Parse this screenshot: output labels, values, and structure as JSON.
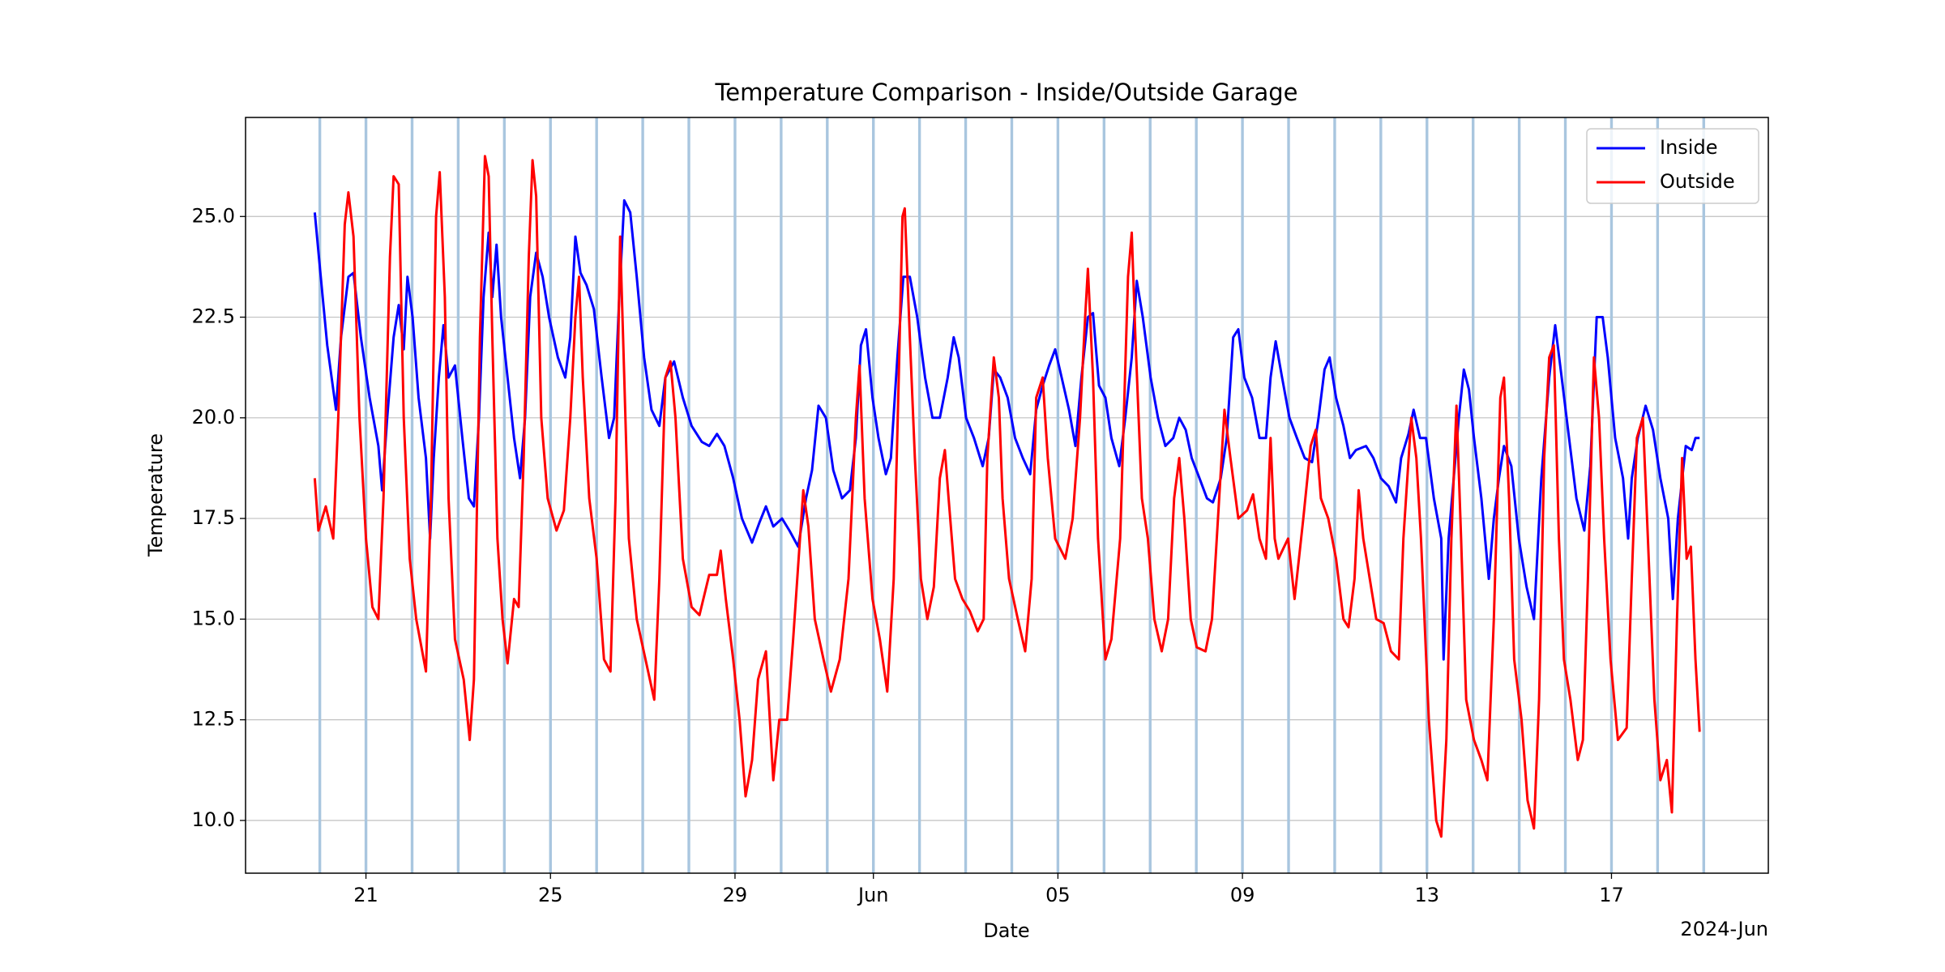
{
  "chart_data": {
    "type": "line",
    "title": "Temperature Comparison - Inside/Outside Garage",
    "xlabel": "Date",
    "ylabel": "Temperature",
    "x_offset_label": "2024-Jun",
    "xlim": [
      18.39,
      51.4
    ],
    "ylim": [
      8.69,
      27.46
    ],
    "xticks": [
      21,
      25,
      29,
      {
        "value": 32,
        "label": "Jun"
      },
      {
        "value": 36,
        "label": "05"
      },
      {
        "value": 40,
        "label": "09"
      },
      {
        "value": 44,
        "label": "13"
      },
      {
        "value": 48,
        "label": "17"
      }
    ],
    "yticks": [
      {
        "value": 10,
        "label": "10.0"
      },
      {
        "value": 12.5,
        "label": "12.5"
      },
      {
        "value": 15,
        "label": "15.0"
      },
      {
        "value": 17.5,
        "label": "17.5"
      },
      {
        "value": 20,
        "label": "20.0"
      },
      {
        "value": 22.5,
        "label": "22.5"
      },
      {
        "value": 25,
        "label": "25.0"
      }
    ],
    "grid": true,
    "legend": "upper right",
    "vlines": [
      20,
      21,
      22,
      23,
      24,
      25,
      26,
      27,
      28,
      29,
      30,
      31,
      32,
      33,
      34,
      35,
      36,
      37,
      38,
      39,
      40,
      41,
      42,
      43,
      44,
      45,
      46,
      47,
      48,
      49,
      50
    ],
    "vline_color": "#a9c6df",
    "series": [
      {
        "name": "Inside",
        "color": "#0000ff",
        "x": [
          19.89,
          20.02,
          20.16,
          20.35,
          20.46,
          20.62,
          20.73,
          20.89,
          21.08,
          21.27,
          21.35,
          21.46,
          21.6,
          21.71,
          21.82,
          21.9,
          22.01,
          22.14,
          22.3,
          22.39,
          22.47,
          22.58,
          22.68,
          22.79,
          22.93,
          23.09,
          23.23,
          23.34,
          23.45,
          23.55,
          23.66,
          23.74,
          23.83,
          23.93,
          24.07,
          24.21,
          24.34,
          24.45,
          24.56,
          24.69,
          24.83,
          24.97,
          25.16,
          25.32,
          25.43,
          25.54,
          25.65,
          25.78,
          25.94,
          26.11,
          26.27,
          26.38,
          26.49,
          26.6,
          26.73,
          26.87,
          27.03,
          27.19,
          27.36,
          27.49,
          27.68,
          27.87,
          28.06,
          28.28,
          28.44,
          28.61,
          28.77,
          28.96,
          29.15,
          29.37,
          29.53,
          29.67,
          29.83,
          30.02,
          30.18,
          30.37,
          30.54,
          30.67,
          30.81,
          30.97,
          31.13,
          31.32,
          31.49,
          31.62,
          31.73,
          31.84,
          31.98,
          32.11,
          32.27,
          32.38,
          32.52,
          32.65,
          32.79,
          32.95,
          33.12,
          33.28,
          33.44,
          33.61,
          33.74,
          33.85,
          34.01,
          34.18,
          34.37,
          34.5,
          34.61,
          34.75,
          34.91,
          35.07,
          35.24,
          35.4,
          35.53,
          35.67,
          35.81,
          35.94,
          36.08,
          36.24,
          36.38,
          36.51,
          36.65,
          36.76,
          36.89,
          37.03,
          37.16,
          37.33,
          37.46,
          37.6,
          37.71,
          37.84,
          38.01,
          38.17,
          38.33,
          38.5,
          38.63,
          38.77,
          38.9,
          39.07,
          39.23,
          39.36,
          39.53,
          39.66,
          39.8,
          39.91,
          40.04,
          40.21,
          40.37,
          40.51,
          40.61,
          40.72,
          40.86,
          41.02,
          41.18,
          41.35,
          41.51,
          41.65,
          41.78,
          41.89,
          42.03,
          42.19,
          42.33,
          42.46,
          42.68,
          42.84,
          43.0,
          43.17,
          43.33,
          43.44,
          43.6,
          43.71,
          43.85,
          43.98,
          44.15,
          44.31,
          44.36,
          44.47,
          44.58,
          44.69,
          44.8,
          44.91,
          45.02,
          45.18,
          45.34,
          45.45,
          45.56,
          45.67,
          45.83,
          45.99,
          46.16,
          46.32,
          46.48,
          46.65,
          46.78,
          46.92,
          47.08,
          47.24,
          47.41,
          47.54,
          47.68,
          47.81,
          47.92,
          48.08,
          48.25,
          48.36,
          48.44,
          48.57,
          48.74,
          48.9,
          49.06,
          49.23,
          49.33,
          49.44,
          49.61,
          49.74,
          49.82,
          49.91
        ],
        "values": [
          25.1,
          23.5,
          21.8,
          20.2,
          22,
          23.5,
          23.6,
          22,
          20.5,
          19.3,
          18.2,
          20,
          22,
          22.8,
          21.7,
          23.5,
          22.5,
          20.5,
          19,
          17,
          19,
          21,
          22.3,
          21,
          21.3,
          19.5,
          18,
          17.8,
          20,
          23,
          24.6,
          23,
          24.3,
          22.5,
          21,
          19.5,
          18.5,
          20,
          23,
          24.1,
          23.5,
          22.5,
          21.5,
          21,
          22,
          24.5,
          23.6,
          23.3,
          22.7,
          21,
          19.5,
          20,
          23,
          25.4,
          25.1,
          23.5,
          21.5,
          20.2,
          19.8,
          21,
          21.4,
          20.5,
          19.8,
          19.4,
          19.3,
          19.6,
          19.3,
          18.5,
          17.5,
          16.9,
          17.4,
          17.8,
          17.3,
          17.5,
          17.2,
          16.8,
          18,
          18.7,
          20.3,
          20,
          18.7,
          18,
          18.2,
          19.5,
          21.8,
          22.2,
          20.5,
          19.5,
          18.6,
          19,
          21.5,
          23.5,
          23.5,
          22.5,
          21,
          20,
          20,
          21,
          22,
          21.5,
          20,
          19.5,
          18.8,
          19.5,
          21.2,
          21,
          20.5,
          19.5,
          19,
          18.6,
          20.2,
          20.8,
          21.3,
          21.7,
          21,
          20.2,
          19.3,
          21,
          22.5,
          22.6,
          20.8,
          20.5,
          19.5,
          18.8,
          20,
          21.5,
          23.4,
          22.5,
          21,
          20,
          19.3,
          19.5,
          20,
          19.7,
          19,
          18.5,
          18,
          17.9,
          18.5,
          19.5,
          22,
          22.2,
          21,
          20.5,
          19.5,
          19.5,
          21,
          21.9,
          21,
          20,
          19.5,
          19,
          18.9,
          20,
          21.2,
          21.5,
          20.5,
          19.8,
          19,
          19.2,
          19.3,
          19,
          18.5,
          18.3,
          17.9,
          19,
          19.6,
          20.2,
          19.5,
          19.5,
          18,
          17,
          14,
          17,
          18.5,
          20,
          21.2,
          20.7,
          19.5,
          18,
          16,
          17.5,
          18.5,
          19.3,
          18.8,
          17,
          15.8,
          15,
          18.5,
          21,
          22.3,
          21,
          19.5,
          18,
          17.2,
          18.8,
          22.5,
          22.5,
          21.5,
          19.5,
          18.5,
          17,
          18.5,
          19.5,
          20.3,
          19.7,
          18.5,
          17.5,
          15.5,
          17.5,
          19.3,
          19.2,
          19.5,
          19.5
        ]
      },
      {
        "name": "Outside",
        "color": "#ff0000",
        "x": [
          19.89,
          19.97,
          20.13,
          20.29,
          20.4,
          20.54,
          20.62,
          20.73,
          20.86,
          21.0,
          21.14,
          21.27,
          21.38,
          21.52,
          21.6,
          21.71,
          21.82,
          21.95,
          22.09,
          22.3,
          22.41,
          22.52,
          22.6,
          22.71,
          22.79,
          22.93,
          23.12,
          23.25,
          23.34,
          23.47,
          23.58,
          23.66,
          23.74,
          23.85,
          23.96,
          24.07,
          24.21,
          24.31,
          24.42,
          24.53,
          24.61,
          24.69,
          24.8,
          24.94,
          25.13,
          25.29,
          25.43,
          25.54,
          25.62,
          25.7,
          25.84,
          26.0,
          26.16,
          26.3,
          26.41,
          26.51,
          26.6,
          26.7,
          26.87,
          27.06,
          27.25,
          27.36,
          27.49,
          27.6,
          27.71,
          27.87,
          28.06,
          28.23,
          28.44,
          28.61,
          28.69,
          28.8,
          28.96,
          29.1,
          29.23,
          29.37,
          29.5,
          29.67,
          29.83,
          29.96,
          30.13,
          30.26,
          30.48,
          30.59,
          30.73,
          30.92,
          31.08,
          31.27,
          31.46,
          31.62,
          31.7,
          31.81,
          31.98,
          32.14,
          32.3,
          32.44,
          32.55,
          32.63,
          32.68,
          32.79,
          32.9,
          33.03,
          33.17,
          33.31,
          33.44,
          33.55,
          33.63,
          33.77,
          33.93,
          34.09,
          34.26,
          34.39,
          34.47,
          34.61,
          34.72,
          34.8,
          34.94,
          35.13,
          35.29,
          35.43,
          35.53,
          35.67,
          35.78,
          35.94,
          36.16,
          36.32,
          36.48,
          36.59,
          36.65,
          36.76,
          36.87,
          37.03,
          37.16,
          37.35,
          37.52,
          37.6,
          37.68,
          37.82,
          37.95,
          38.09,
          38.25,
          38.39,
          38.52,
          38.63,
          38.74,
          38.88,
          39.01,
          39.2,
          39.34,
          39.47,
          39.61,
          39.74,
          39.91,
          40.1,
          40.23,
          40.37,
          40.51,
          40.61,
          40.7,
          40.78,
          40.99,
          41.13,
          41.32,
          41.48,
          41.59,
          41.7,
          41.86,
          42.03,
          42.19,
          42.3,
          42.43,
          42.52,
          42.62,
          42.76,
          42.9,
          43.06,
          43.22,
          43.39,
          43.49,
          43.66,
          43.77,
          43.87,
          44.04,
          44.2,
          44.31,
          44.42,
          44.53,
          44.64,
          44.74,
          44.85,
          45.02,
          45.18,
          45.31,
          45.45,
          45.59,
          45.67,
          45.78,
          45.89,
          46.05,
          46.18,
          46.32,
          46.43,
          46.54,
          46.65,
          46.75,
          46.86,
          46.97,
          47.11,
          47.27,
          47.38,
          47.49,
          47.62,
          47.73,
          47.84,
          47.98,
          48.14,
          48.33,
          48.44,
          48.55,
          48.68,
          48.79,
          48.93,
          49.06,
          49.2,
          49.31,
          49.42,
          49.53,
          49.63,
          49.72,
          49.82,
          49.91
        ],
        "values": [
          18.5,
          17.2,
          17.8,
          17,
          20,
          24.8,
          25.6,
          24.5,
          20,
          17,
          15.3,
          15,
          18,
          24,
          26,
          25.8,
          20,
          16.5,
          15,
          13.7,
          18,
          25,
          26.1,
          23,
          18,
          14.5,
          13.5,
          12,
          13.5,
          22,
          26.5,
          26,
          22,
          17,
          15,
          13.9,
          15.5,
          15.3,
          19,
          24,
          26.4,
          25.5,
          20,
          18,
          17.2,
          17.7,
          20,
          22.5,
          23.5,
          21,
          18,
          16.5,
          14,
          13.7,
          18,
          24.5,
          21,
          17,
          15,
          14,
          13,
          16,
          21,
          21.4,
          20,
          16.5,
          15.3,
          15.1,
          16.1,
          16.1,
          16.7,
          15.5,
          14,
          12.5,
          10.6,
          11.5,
          13.5,
          14.2,
          11,
          12.5,
          12.5,
          14.5,
          18.2,
          17.3,
          15,
          14,
          13.2,
          14,
          16,
          20,
          21.3,
          18,
          15.5,
          14.5,
          13.2,
          16,
          21,
          25,
          25.2,
          22,
          19,
          16,
          15,
          15.8,
          18.5,
          19.2,
          18,
          16,
          15.5,
          15.2,
          14.7,
          15,
          19,
          21.5,
          20.5,
          18,
          16,
          15,
          14.2,
          16,
          20.5,
          21,
          19,
          17,
          16.5,
          17.5,
          20,
          22.5,
          23.7,
          21,
          17,
          14,
          14.5,
          17,
          23.5,
          24.6,
          22,
          18,
          17,
          15,
          14.2,
          15,
          18,
          19,
          17.5,
          15,
          14.3,
          14.2,
          15,
          17.5,
          20.2,
          19,
          17.5,
          17.7,
          18.1,
          17,
          16.5,
          19.5,
          17,
          16.5,
          17,
          15.5,
          17.5,
          19.3,
          19.7,
          18,
          17.5,
          16.5,
          15,
          14.8,
          16,
          18.2,
          17,
          16,
          15,
          14.9,
          14.2,
          14,
          17,
          20,
          19,
          17,
          12.5,
          10,
          9.6,
          12,
          17,
          20.3,
          17,
          13,
          12,
          11.5,
          11,
          15,
          20.5,
          21,
          18,
          14,
          12.5,
          10.5,
          9.8,
          13,
          19,
          21.5,
          21.8,
          17,
          14,
          13,
          11.5,
          12,
          16,
          21.5,
          20,
          17,
          14,
          12,
          12.3,
          16,
          19.5,
          20,
          17,
          13,
          11,
          11.5,
          10.2,
          15,
          19,
          16.5,
          16.8,
          14,
          12.2
        ]
      }
    ]
  }
}
